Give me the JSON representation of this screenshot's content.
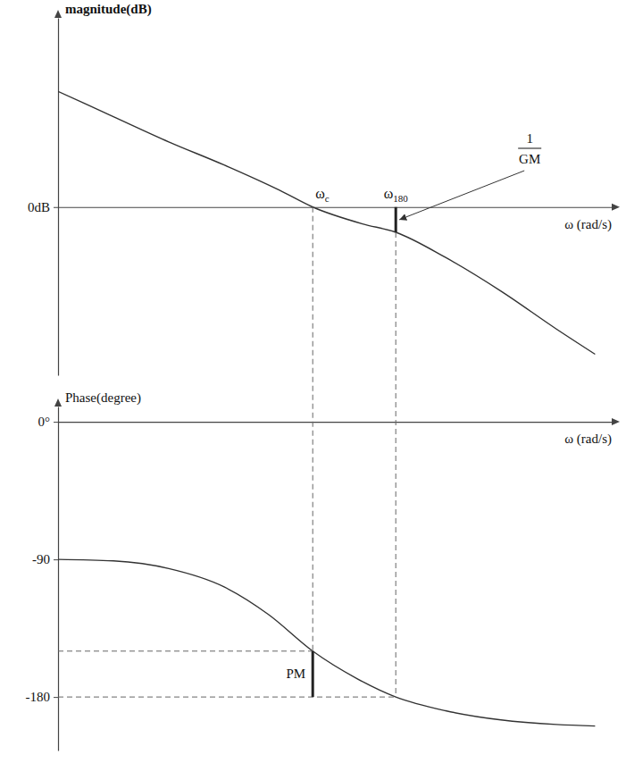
{
  "chart_data": [
    {
      "type": "line",
      "y_label": "magnitude(dB)",
      "x_label": "ω (rad/s)",
      "x": [
        0,
        10,
        20,
        30,
        40,
        46,
        55,
        61,
        70,
        80,
        90,
        97
      ],
      "values": [
        27.5,
        21.5,
        15.5,
        10,
        4,
        0,
        -4,
        -6,
        -12,
        -20,
        -29,
        -35
      ],
      "xlim": [
        0,
        100
      ],
      "xticks": [],
      "ylim": [
        -40,
        45
      ],
      "yticks": [
        {
          "value": 0,
          "label": "0dB"
        }
      ],
      "tick_labels": "y",
      "color": "#333333",
      "annotations": [
        {
          "label": "ω",
          "subscript": "c",
          "x": 46,
          "y": 0
        },
        {
          "label": "ω",
          "subscript": "180",
          "x": 61,
          "y": 0
        },
        {
          "label": "1",
          "denominator": "GM",
          "x": 61,
          "y": -6
        }
      ]
    },
    {
      "type": "line",
      "y_label": "Phase(degree)",
      "x_label": "ω (rad/s)",
      "x": [
        0,
        10,
        20,
        30,
        38,
        46,
        54,
        61,
        70,
        80,
        90,
        97
      ],
      "values": [
        -90,
        -91,
        -96,
        -108,
        -126,
        -150,
        -168,
        -180,
        -189,
        -195,
        -198,
        -199
      ],
      "xlim": [
        0,
        100
      ],
      "xticks": [],
      "ylim": [
        -215,
        10
      ],
      "yticks": [
        {
          "value": 0,
          "label": "0°"
        },
        -90,
        -180
      ],
      "tick_labels": "y",
      "color": "#333333",
      "annotations": [
        {
          "label": "PM",
          "x": 46,
          "y": -150,
          "y_ref": -180
        }
      ]
    }
  ]
}
